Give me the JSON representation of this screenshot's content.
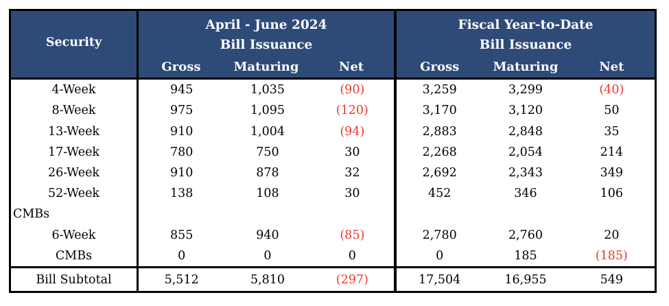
{
  "colors": {
    "header_bg": "#2e4b78",
    "negative": "#e8392b",
    "border": "#000000",
    "header_text": "#ffffff",
    "body_text": "#000000"
  },
  "table": {
    "header": {
      "security_label": "Security",
      "groups": [
        {
          "title_line1": "April - June 2024",
          "title_line2": "Bill Issuance",
          "columns": [
            "Gross",
            "Maturing",
            "Net"
          ]
        },
        {
          "title_line1": "Fiscal Year-to-Date",
          "title_line2": "Bill Issuance",
          "columns": [
            "Gross",
            "Maturing",
            "Net"
          ]
        }
      ]
    },
    "rows": [
      {
        "security": "4-Week",
        "group_label": false,
        "cells": [
          "945",
          "1,035",
          "(90)",
          "3,259",
          "3,299",
          "(40)"
        ]
      },
      {
        "security": "8-Week",
        "group_label": false,
        "cells": [
          "975",
          "1,095",
          "(120)",
          "3,170",
          "3,120",
          "50"
        ]
      },
      {
        "security": "13-Week",
        "group_label": false,
        "cells": [
          "910",
          "1,004",
          "(94)",
          "2,883",
          "2,848",
          "35"
        ]
      },
      {
        "security": "17-Week",
        "group_label": false,
        "cells": [
          "780",
          "750",
          "30",
          "2,268",
          "2,054",
          "214"
        ]
      },
      {
        "security": "26-Week",
        "group_label": false,
        "cells": [
          "910",
          "878",
          "32",
          "2,692",
          "2,343",
          "349"
        ]
      },
      {
        "security": "52-Week",
        "group_label": false,
        "cells": [
          "138",
          "108",
          "30",
          "452",
          "346",
          "106"
        ]
      },
      {
        "security": "CMBs",
        "group_label": true,
        "cells": [
          "",
          "",
          "",
          "",
          "",
          ""
        ]
      },
      {
        "security": "6-Week",
        "group_label": false,
        "cells": [
          "855",
          "940",
          "(85)",
          "2,780",
          "2,760",
          "20"
        ]
      },
      {
        "security": "CMBs",
        "group_label": false,
        "cells": [
          "0",
          "0",
          "0",
          "0",
          "185",
          "(185)"
        ]
      }
    ],
    "subtotal": {
      "security": "Bill Subtotal",
      "group_label": false,
      "cells": [
        "5,512",
        "5,810",
        "(297)",
        "17,504",
        "16,955",
        "549"
      ]
    }
  }
}
